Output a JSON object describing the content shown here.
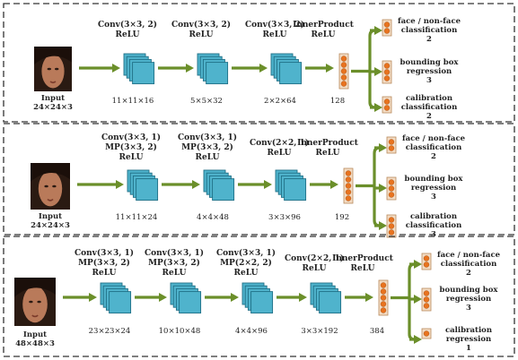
{
  "panels": [
    {
      "layers": [
        {
          "lines": [
            "Conv(3×3, 2)",
            "ReLU"
          ],
          "dim": "11×11×16"
        },
        {
          "lines": [
            "Conv(3×3, 2)",
            "ReLU"
          ],
          "dim": "5×5×32"
        },
        {
          "lines": [
            "Conv(3×3, 2)",
            "ReLU"
          ],
          "dim": "2×2×64"
        }
      ],
      "fc": {
        "lines": [
          "InnerProduct",
          "ReLU"
        ],
        "dim": "128"
      },
      "input": {
        "lines": [
          "Input",
          "24×24×3"
        ]
      },
      "outputs": [
        {
          "lines": [
            "face / non-face",
            "classification",
            "2"
          ]
        },
        {
          "lines": [
            "bounding box",
            "regression",
            "3"
          ]
        },
        {
          "lines": [
            "calibration",
            "classification",
            "2"
          ]
        }
      ]
    },
    {
      "layers": [
        {
          "lines": [
            "Conv(3×3, 1)",
            "MP(3×3, 2)",
            "ReLU"
          ],
          "dim": "11×11×24"
        },
        {
          "lines": [
            "Conv(3×3, 1)",
            "MP(3×3, 2)",
            "ReLU"
          ],
          "dim": "4×4×48"
        },
        {
          "lines": [
            "Conv(2×2, 1)",
            "ReLU"
          ],
          "dim": "3×3×96"
        }
      ],
      "fc": {
        "lines": [
          "InnerProduct",
          "ReLU"
        ],
        "dim": "192"
      },
      "input": {
        "lines": [
          "Input",
          "24×24×3"
        ]
      },
      "outputs": [
        {
          "lines": [
            "face / non-face",
            "classification",
            "2"
          ]
        },
        {
          "lines": [
            "bounding box",
            "regression",
            "3"
          ]
        },
        {
          "lines": [
            "calibration",
            "classification",
            "3"
          ]
        }
      ]
    },
    {
      "layers": [
        {
          "lines": [
            "Conv(3×3, 1)",
            "MP(3×3, 2)",
            "ReLU"
          ],
          "dim": "23×23×24"
        },
        {
          "lines": [
            "Conv(3×3, 1)",
            "MP(3×3, 2)",
            "ReLU"
          ],
          "dim": "10×10×48"
        },
        {
          "lines": [
            "Conv(3×3, 1)",
            "MP(2×2, 2)",
            "ReLU"
          ],
          "dim": "4×4×96"
        },
        {
          "lines": [
            "Conv(2×2, 1)",
            "ReLU"
          ],
          "dim": "3×3×192"
        }
      ],
      "fc": {
        "lines": [
          "InnerProduct",
          "ReLU"
        ],
        "dim": "384"
      },
      "input": {
        "lines": [
          "Input",
          "48×48×3"
        ]
      },
      "outputs": [
        {
          "lines": [
            "face / non-face",
            "classification",
            "2"
          ]
        },
        {
          "lines": [
            "bounding box",
            "regression",
            "3"
          ]
        },
        {
          "lines": [
            "calibration",
            "regression",
            "1"
          ]
        }
      ]
    }
  ],
  "colors": {
    "arrow": "#6b8f2a",
    "cube_fill": "#4fb3cc",
    "cube_stroke": "#1f6f86",
    "neuron_fill": "#e8731f",
    "neuron_box": "#f3dcc4",
    "border": "#333333"
  }
}
